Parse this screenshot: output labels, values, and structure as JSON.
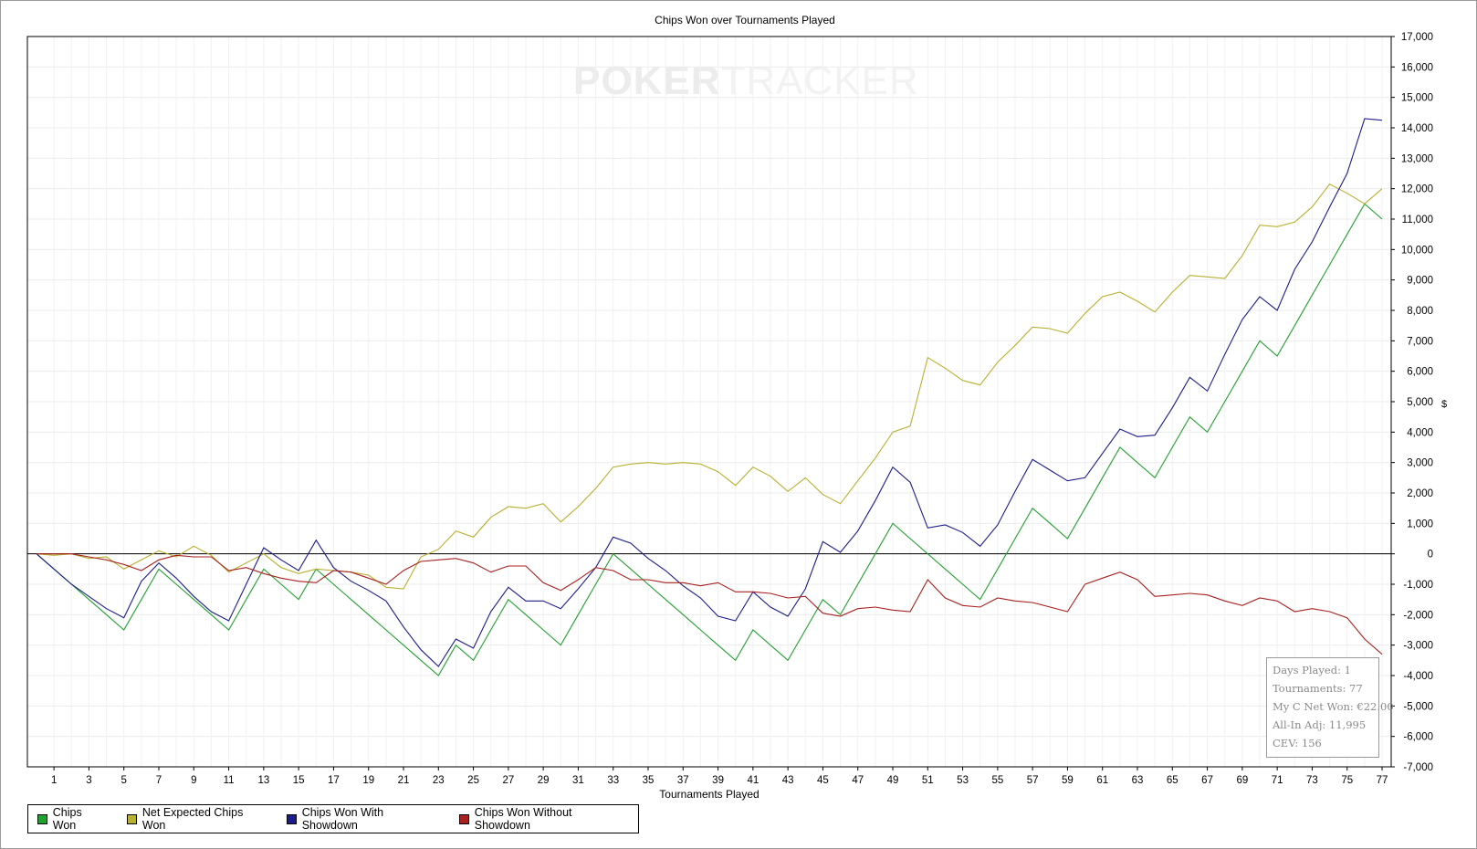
{
  "chart_data": {
    "type": "line",
    "title": "Chips Won over Tournaments Played",
    "xlabel": "Tournaments Played",
    "ylabel": "$",
    "xlim": [
      1,
      77
    ],
    "ylim": [
      -7000,
      17000
    ],
    "x_ticks": [
      1,
      3,
      5,
      7,
      9,
      11,
      13,
      15,
      17,
      19,
      21,
      23,
      25,
      27,
      29,
      31,
      33,
      35,
      37,
      39,
      41,
      43,
      45,
      47,
      49,
      51,
      53,
      55,
      57,
      59,
      61,
      63,
      65,
      67,
      69,
      71,
      73,
      75,
      77
    ],
    "y_ticks": [
      -7000,
      -6000,
      -5000,
      -4000,
      -3000,
      -2000,
      -1000,
      0,
      1000,
      2000,
      3000,
      4000,
      5000,
      6000,
      7000,
      8000,
      9000,
      10000,
      11000,
      12000,
      13000,
      14000,
      15000,
      16000,
      17000
    ],
    "y_tick_labels": [
      "-7,000",
      "-6,000",
      "-5,000",
      "-4,000",
      "-3,000",
      "-2,000",
      "-1,000",
      "0",
      "1,000",
      "2,000",
      "3,000",
      "4,000",
      "5,000",
      "6,000",
      "7,000",
      "8,000",
      "9,000",
      "10,000",
      "11,000",
      "12,000",
      "13,000",
      "14,000",
      "15,000",
      "16,000",
      "17,000"
    ],
    "grid": true,
    "legend_position": "bottom-left",
    "x": [
      0,
      1,
      2,
      3,
      4,
      5,
      6,
      7,
      8,
      9,
      10,
      11,
      12,
      13,
      14,
      15,
      16,
      17,
      18,
      19,
      20,
      21,
      22,
      23,
      24,
      25,
      26,
      27,
      28,
      29,
      30,
      31,
      32,
      33,
      34,
      35,
      36,
      37,
      38,
      39,
      40,
      41,
      42,
      43,
      44,
      45,
      46,
      47,
      48,
      49,
      50,
      51,
      52,
      53,
      54,
      55,
      56,
      57,
      58,
      59,
      60,
      61,
      62,
      63,
      64,
      65,
      66,
      67,
      68,
      69,
      70,
      71,
      72,
      73,
      74,
      75,
      76,
      77
    ],
    "series": [
      {
        "name": "Chips Won",
        "color": "#22a030",
        "values": [
          0,
          -500,
          -1000,
          -1500,
          -2000,
          -2500,
          -1500,
          -500,
          -1000,
          -1500,
          -2000,
          -2500,
          -1500,
          -500,
          -1000,
          -1500,
          -500,
          -1000,
          -1500,
          -2000,
          -2500,
          -3000,
          -3500,
          -4000,
          -3000,
          -3500,
          -2500,
          -1500,
          -2000,
          -2500,
          -3000,
          -2000,
          -1000,
          0,
          -500,
          -1000,
          -1500,
          -2000,
          -2500,
          -3000,
          -3500,
          -2500,
          -3000,
          -3500,
          -2500,
          -1500,
          -2000,
          -1000,
          0,
          1000,
          500,
          0,
          -500,
          -1000,
          -1500,
          -500,
          500,
          1500,
          1000,
          500,
          1500,
          2500,
          3500,
          3000,
          2500,
          3500,
          4500,
          4000,
          5000,
          6000,
          7000,
          6500,
          7500,
          8500,
          9500,
          10500,
          11500,
          11000
        ]
      },
      {
        "name": "Net Expected Chips Won",
        "color": "#b8b030",
        "values": [
          0,
          -50,
          0,
          -150,
          -100,
          -500,
          -200,
          100,
          -100,
          250,
          -50,
          -600,
          -300,
          0,
          -450,
          -650,
          -500,
          -550,
          -600,
          -700,
          -1100,
          -1150,
          -100,
          150,
          750,
          550,
          1200,
          1550,
          1500,
          1650,
          1050,
          1550,
          2150,
          2850,
          2950,
          3000,
          2950,
          3000,
          2950,
          2700,
          2250,
          2850,
          2550,
          2050,
          2500,
          1950,
          1650,
          2400,
          3150,
          4000,
          4200,
          6450,
          6100,
          5700,
          5550,
          6300,
          6850,
          7450,
          7400,
          7250,
          7900,
          8450,
          8600,
          8300,
          7950,
          8600,
          9150,
          9100,
          9050,
          9800,
          10800,
          10750,
          10900,
          11400,
          12150,
          11850,
          11500,
          12000
        ]
      },
      {
        "name": "Chips Won With Showdown",
        "color": "#1c1c8c",
        "values": [
          0,
          -500,
          -1000,
          -1400,
          -1800,
          -2100,
          -900,
          -300,
          -800,
          -1400,
          -1900,
          -2200,
          -1000,
          200,
          -200,
          -550,
          450,
          -450,
          -900,
          -1200,
          -1550,
          -2400,
          -3150,
          -3700,
          -2800,
          -3100,
          -1900,
          -1100,
          -1550,
          -1550,
          -1800,
          -1150,
          -450,
          550,
          350,
          -150,
          -550,
          -1050,
          -1450,
          -2050,
          -2200,
          -1250,
          -1750,
          -2050,
          -1150,
          400,
          50,
          750,
          1750,
          2850,
          2350,
          850,
          950,
          700,
          250,
          950,
          2050,
          3100,
          2750,
          2400,
          2500,
          3300,
          4100,
          3850,
          3900,
          4800,
          5800,
          5350,
          6550,
          7700,
          8450,
          8000,
          9350,
          10250,
          11400,
          12500,
          14300,
          14250
        ]
      },
      {
        "name": "Chips Won Without Showdown",
        "color": "#a82020",
        "values": [
          0,
          0,
          0,
          -100,
          -200,
          -350,
          -550,
          -200,
          -50,
          -100,
          -100,
          -550,
          -450,
          -650,
          -800,
          -900,
          -950,
          -550,
          -600,
          -800,
          -1000,
          -550,
          -250,
          -200,
          -150,
          -300,
          -600,
          -400,
          -400,
          -950,
          -1200,
          -850,
          -450,
          -550,
          -850,
          -850,
          -950,
          -950,
          -1050,
          -950,
          -1250,
          -1250,
          -1300,
          -1450,
          -1400,
          -1950,
          -2050,
          -1800,
          -1750,
          -1850,
          -1900,
          -850,
          -1450,
          -1700,
          -1750,
          -1450,
          -1550,
          -1600,
          -1750,
          -1900,
          -1000,
          -800,
          -600,
          -850,
          -1400,
          -1350,
          -1300,
          -1350,
          -1550,
          -1700,
          -1450,
          -1550,
          -1900,
          -1800,
          -1900,
          -2100,
          -2800,
          -3300
        ]
      }
    ]
  },
  "legend": {
    "items": [
      {
        "label": "Chips Won",
        "color": "#22a030"
      },
      {
        "label": "Net Expected Chips Won",
        "color": "#b8b030"
      },
      {
        "label": "Chips Won With Showdown",
        "color": "#1c1c8c"
      },
      {
        "label": "Chips Won Without Showdown",
        "color": "#a82020"
      }
    ]
  },
  "stats": {
    "days_played": "Days Played: 1",
    "tournaments": "Tournaments: 77",
    "net_won": "My C Net Won: €22.00",
    "all_in_adj": "All-In Adj: 11,995",
    "cev": "CEV: 156"
  },
  "watermark": {
    "bold": "POKER",
    "light": "TRACKER"
  }
}
